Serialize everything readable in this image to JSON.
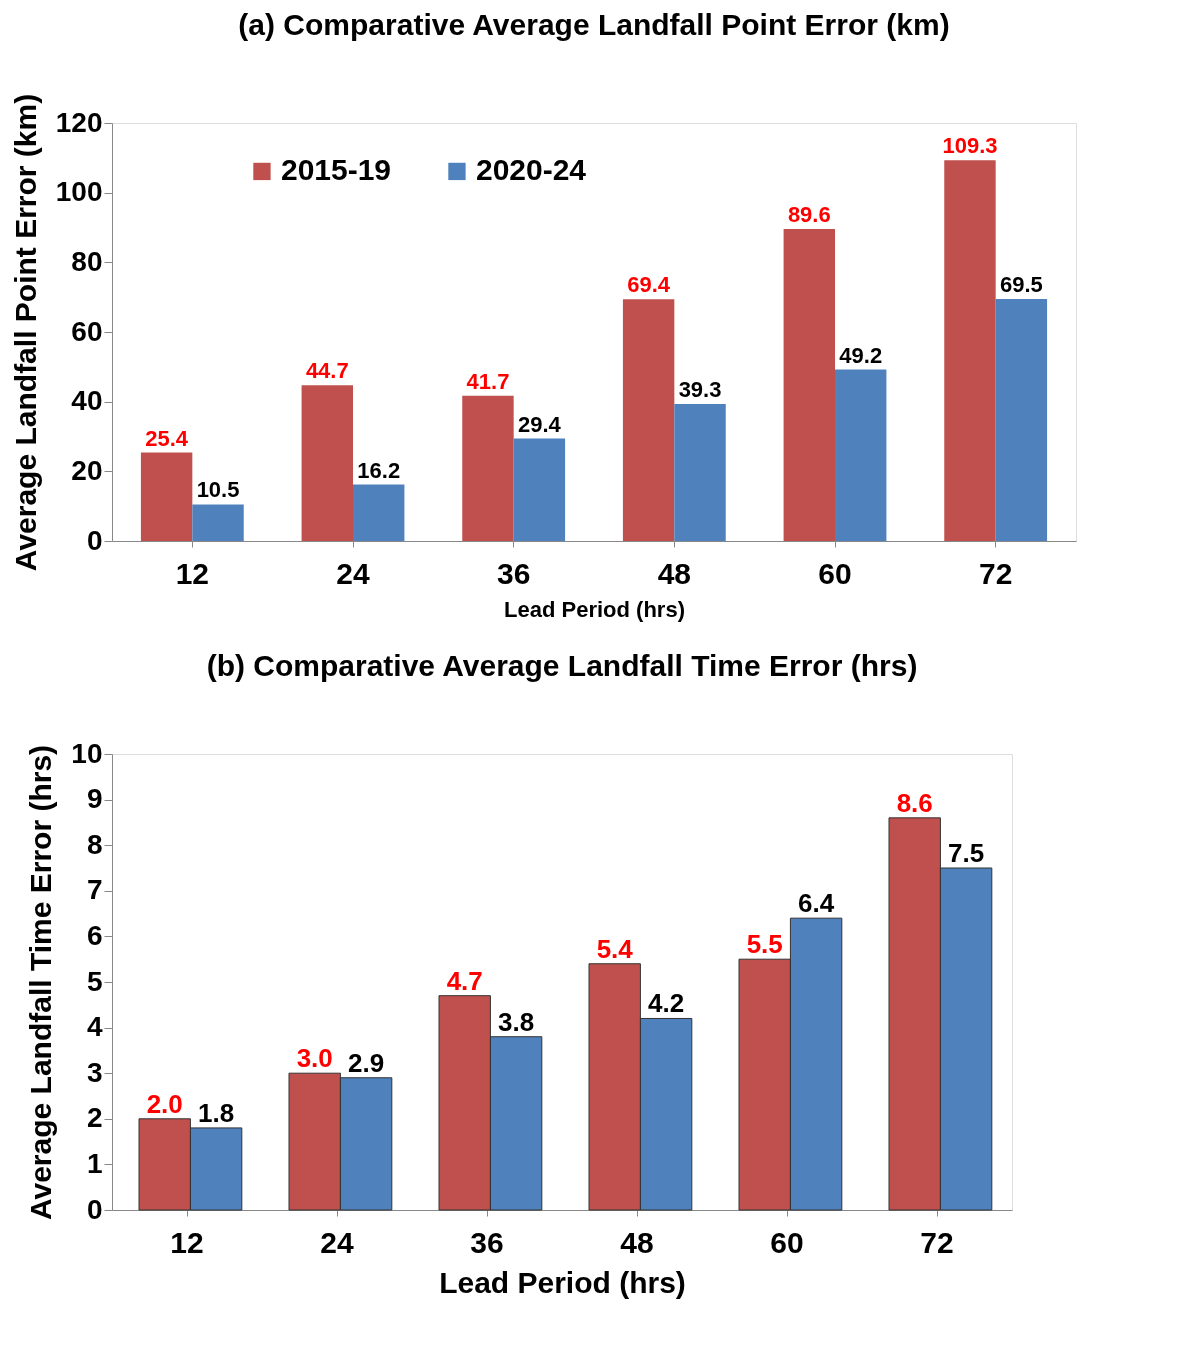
{
  "chart_data": [
    {
      "type": "bar",
      "title": "(a) Comparative Average Landfall Point Error (km)",
      "xlabel": "Lead Period (hrs)",
      "ylabel": "Average Landfall Point Error (km)",
      "categories": [
        "12",
        "24",
        "36",
        "48",
        "60",
        "72"
      ],
      "series": [
        {
          "name": "2015-19",
          "color": "#c0504d",
          "values": [
            25.4,
            44.7,
            41.7,
            69.4,
            89.6,
            109.3
          ],
          "value_labels": [
            "25.4",
            "44.7",
            "41.7",
            "69.4",
            "89.6",
            "109.3"
          ]
        },
        {
          "name": "2020-24",
          "color": "#4f81bd",
          "values": [
            10.5,
            16.2,
            29.4,
            39.3,
            49.2,
            69.5
          ],
          "value_labels": [
            "10.5",
            "16.2",
            "29.4",
            "39.3",
            "49.2",
            "69.5"
          ]
        }
      ],
      "ylim": [
        0,
        120
      ],
      "yticks": [
        0,
        20,
        40,
        60,
        80,
        100,
        120
      ],
      "grid": false,
      "legend": "top left"
    },
    {
      "type": "bar",
      "title": "(b) Comparative Average Landfall Time Error (hrs)",
      "xlabel": "Lead Period (hrs)",
      "ylabel": "Average Landfall Time Error (hrs)",
      "categories": [
        "12",
        "24",
        "36",
        "48",
        "60",
        "72"
      ],
      "series": [
        {
          "name": "2015-19",
          "color": "#c0504d",
          "values": [
            2.0,
            3.0,
            4.7,
            5.4,
            5.5,
            8.6
          ],
          "value_labels": [
            "2.0",
            "3.0",
            "4.7",
            "5.4",
            "5.5",
            "8.6"
          ]
        },
        {
          "name": "2020-24",
          "color": "#4f81bd",
          "values": [
            1.8,
            2.9,
            3.8,
            4.2,
            6.4,
            7.5
          ],
          "value_labels": [
            "1.8",
            "2.9",
            "3.8",
            "4.2",
            "6.4",
            "7.5"
          ]
        }
      ],
      "ylim": [
        0,
        10
      ],
      "yticks": [
        0,
        1,
        2,
        3,
        4,
        5,
        6,
        7,
        8,
        9,
        10
      ],
      "grid": false,
      "legend": "top left"
    }
  ]
}
